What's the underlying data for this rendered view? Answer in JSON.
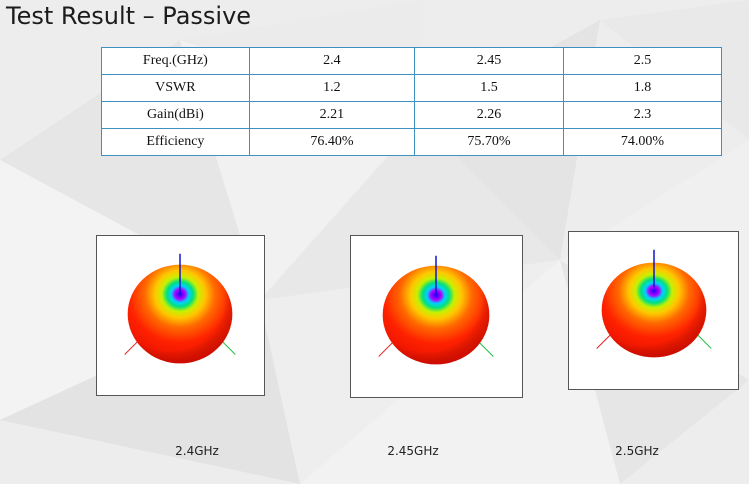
{
  "slide": {
    "title": "Test Result – Passive"
  },
  "table": {
    "rows": [
      [
        "Freq.(GHz)",
        "2.4",
        "2.45",
        "2.5"
      ],
      [
        "VSWR",
        "1.2",
        "1.5",
        "1.8"
      ],
      [
        "Gain(dBi)",
        "2.21",
        "2.26",
        "2.3"
      ],
      [
        "Efficiency",
        "76.40%",
        "75.70%",
        "74.00%"
      ]
    ]
  },
  "plots": [
    {
      "caption": "2.4GHz"
    },
    {
      "caption": "2.45GHz"
    },
    {
      "caption": "2.5GHz"
    }
  ],
  "colors": {
    "table_border": "#3f8fc0",
    "pattern_outer": "#ff1a00",
    "pattern_mid": "#ffd000",
    "pattern_inner": "#1a00ff",
    "axis_x": "#e02020",
    "axis_y": "#20c040",
    "axis_z": "#1010d0"
  }
}
